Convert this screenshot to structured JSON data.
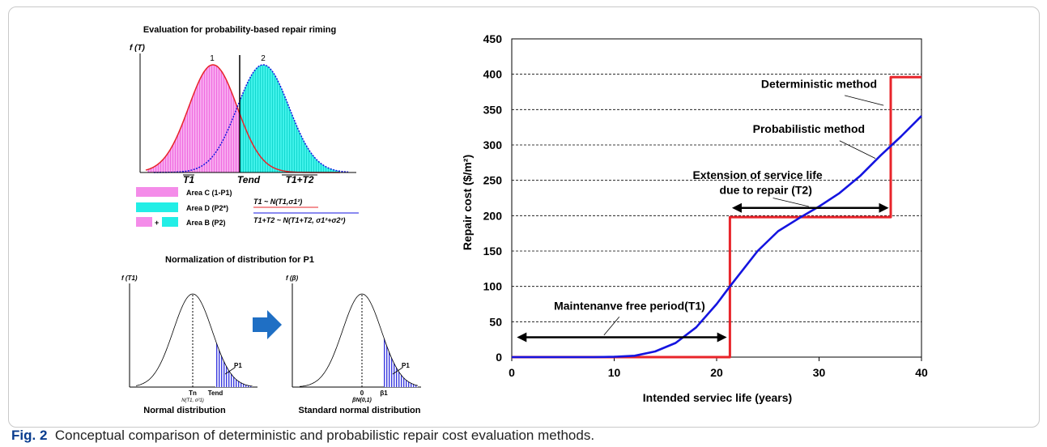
{
  "left_panel": {
    "top_title": "Evaluation for probability-based repair riming",
    "top_ylabel": "f (T)",
    "curve1_label": "1",
    "curve2_label": "2",
    "x_t1": "T1",
    "x_tend": "Tend",
    "x_t1t2": "T1+T2",
    "legend": [
      {
        "label": "Area C (1-P1)"
      },
      {
        "label": "Area D (P2*)"
      },
      {
        "label": "Area B (P2)"
      }
    ],
    "formula1": "T1 ~ N(T1,σ1²)",
    "formula2": "T1+T2 ~ N(T1+T2, σ1²+σ2²)",
    "bottom_title": "Normalization of distribution for P1",
    "normal_ylabel": "f (T1)",
    "normal_tn": "Tn",
    "normal_tn_sub": "N(T1, σ²1)",
    "normal_tend": "Tend",
    "normal_p1": "P1",
    "normal_caption": "Normal distribution",
    "std_ylabel": "f (β)",
    "std_zero": "0",
    "std_sub": "βN(0,1)",
    "std_beta": "β1",
    "std_p1": "P1",
    "std_caption": "Standard normal distribution"
  },
  "chart_data": {
    "type": "line",
    "xlabel": "Intended serviec life (years)",
    "ylabel": "Repair cost ($/m²)",
    "xlim": [
      0,
      40
    ],
    "ylim": [
      0,
      450
    ],
    "xticks": [
      0,
      10,
      20,
      30,
      40
    ],
    "yticks": [
      0,
      50,
      100,
      150,
      200,
      250,
      300,
      350,
      400,
      450
    ],
    "grid": "horizontal dashed",
    "series": [
      {
        "name": "Deterministic method",
        "color": "#e8242a",
        "x": [
          0,
          21.3,
          21.3,
          37,
          37,
          40
        ],
        "y": [
          0,
          0,
          198,
          198,
          396,
          396
        ]
      },
      {
        "name": "Probabilistic method",
        "color": "#1414e0",
        "x": [
          0,
          8,
          10,
          12,
          14,
          16,
          18,
          20,
          21.3,
          22,
          24,
          26,
          28,
          30,
          32,
          34,
          36,
          38,
          40
        ],
        "y": [
          0,
          0,
          0.5,
          2,
          8,
          20,
          42,
          75,
          100,
          113,
          150,
          178,
          196,
          213,
          232,
          256,
          285,
          312,
          341
        ]
      }
    ],
    "annotations": [
      {
        "text": "Deterministic method"
      },
      {
        "text": "Probabilistic method"
      },
      {
        "text": "Extension of service life"
      },
      {
        "text": "due to repair (T2)"
      },
      {
        "text": "Maintenanve free period(T1)"
      }
    ]
  },
  "caption": {
    "label": "Fig. 2",
    "text": "Conceptual comparison of deterministic and probabilistic repair cost evaluation methods."
  },
  "colors": {
    "pink": "#f48ce9",
    "cyan": "#22eee6",
    "red": "#e8242a",
    "blue": "#1414e0",
    "arrow": "#1f6fc4"
  }
}
